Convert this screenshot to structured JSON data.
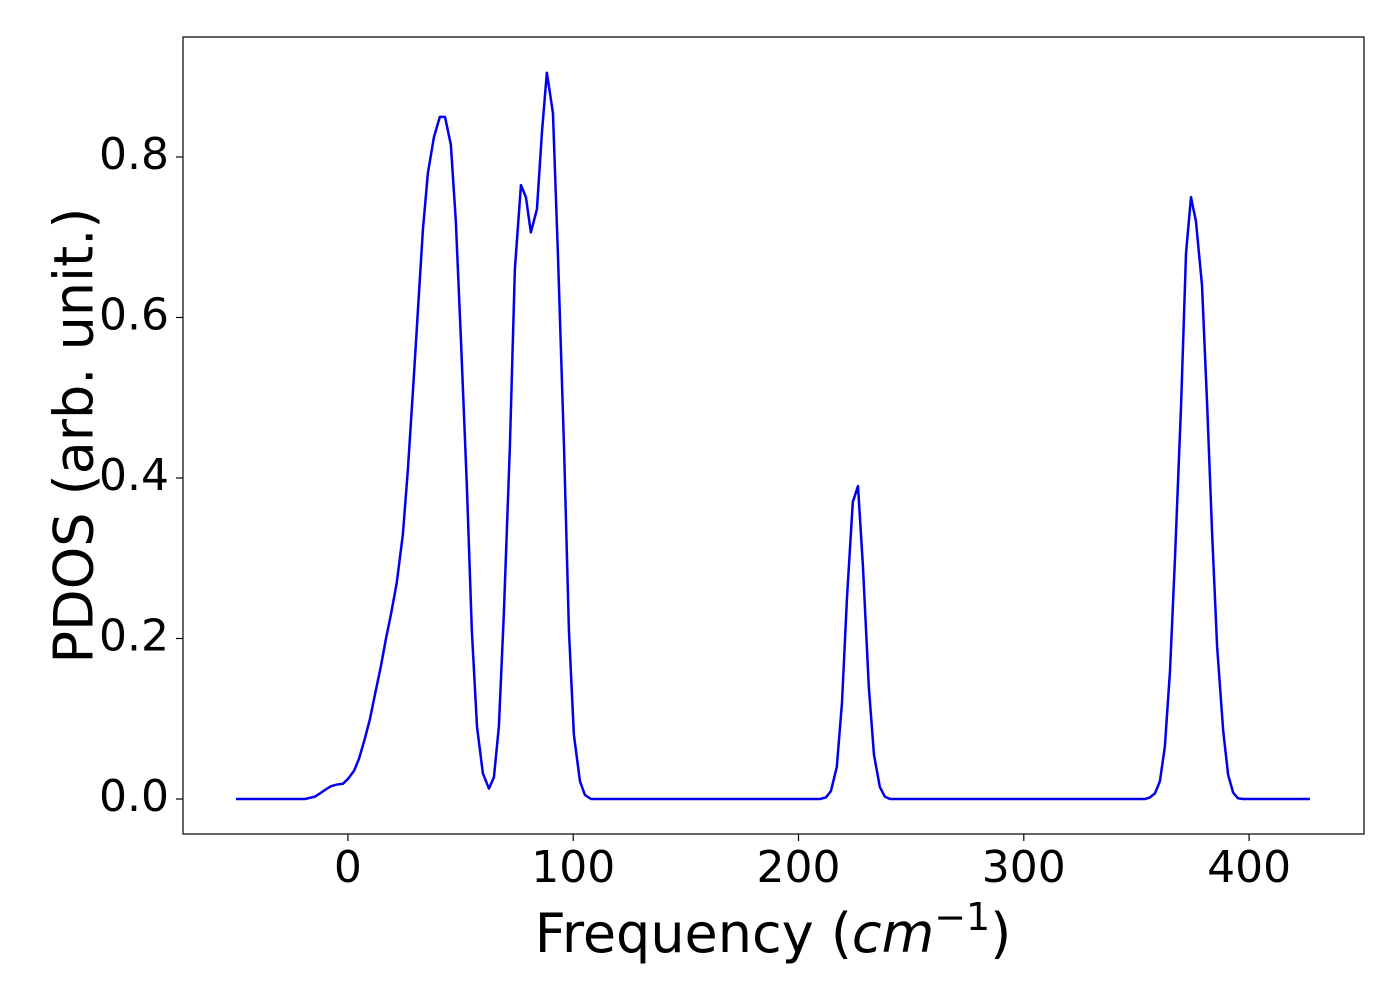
{
  "chart_data": {
    "type": "line",
    "ylabel": "PDOS (arb. unit.)",
    "xlabel": [
      "Frequency (",
      "cm",
      "−1",
      ")"
    ],
    "x": [
      -49.7,
      -19.1,
      -14.6,
      -12.4,
      -9.8,
      -7.5,
      -4.9,
      -2.2,
      0,
      2.7,
      4.9,
      7.5,
      9.8,
      12,
      14.6,
      16.9,
      19.1,
      21.7,
      24.4,
      26.6,
      28.9,
      31.1,
      33.3,
      35.5,
      38.2,
      40.8,
      43.1,
      45.7,
      47.9,
      50.2,
      52.8,
      55.0,
      57.3,
      59.9,
      62.6,
      64.8,
      67.0,
      69.2,
      71.9,
      74.1,
      76.8,
      79.0,
      81.2,
      83.9,
      86.1,
      88.3,
      91.0,
      93.2,
      95.9,
      98.1,
      100.3,
      103.0,
      105.2,
      107.9,
      209.5,
      212.2,
      214.4,
      217.0,
      219.3,
      221.5,
      224.1,
      226.4,
      228.6,
      231.2,
      233.5,
      236.1,
      238.3,
      240.6,
      353.8,
      356,
      358.2,
      360.4,
      362.6,
      364.9,
      367.1,
      369.8,
      372.0,
      374.2,
      376.4,
      379.1,
      381.4,
      383.6,
      385.8,
      388.5,
      390.7,
      392.9,
      395.0,
      397.2,
      427
    ],
    "values": [
      0,
      0,
      0.003,
      0.007,
      0.012,
      0.016,
      0.018,
      0.019,
      0.025,
      0.035,
      0.05,
      0.075,
      0.1,
      0.13,
      0.165,
      0.2,
      0.23,
      0.27,
      0.33,
      0.41,
      0.51,
      0.61,
      0.71,
      0.78,
      0.825,
      0.85,
      0.85,
      0.815,
      0.72,
      0.57,
      0.39,
      0.21,
      0.09,
      0.032,
      0.013,
      0.027,
      0.09,
      0.23,
      0.44,
      0.66,
      0.765,
      0.75,
      0.706,
      0.735,
      0.83,
      0.905,
      0.855,
      0.68,
      0.44,
      0.21,
      0.08,
      0.022,
      0.005,
      0,
      0,
      0.002,
      0.01,
      0.04,
      0.12,
      0.25,
      0.37,
      0.39,
      0.29,
      0.14,
      0.055,
      0.015,
      0.003,
      0,
      0,
      0.002,
      0.007,
      0.022,
      0.065,
      0.16,
      0.3,
      0.49,
      0.68,
      0.75,
      0.72,
      0.64,
      0.49,
      0.33,
      0.19,
      0.085,
      0.03,
      0.008,
      0.001,
      0,
      0
    ],
    "color": "#0000ee",
    "xlim": [
      -73.2,
      451
    ],
    "ylim": [
      -0.0436,
      0.9495
    ],
    "xticks": [
      0,
      100,
      200,
      300,
      400
    ],
    "yticks": [
      {
        "value": 0,
        "label": "0.0"
      },
      0.2,
      0.4,
      0.6,
      0.8
    ],
    "grid": false
  }
}
